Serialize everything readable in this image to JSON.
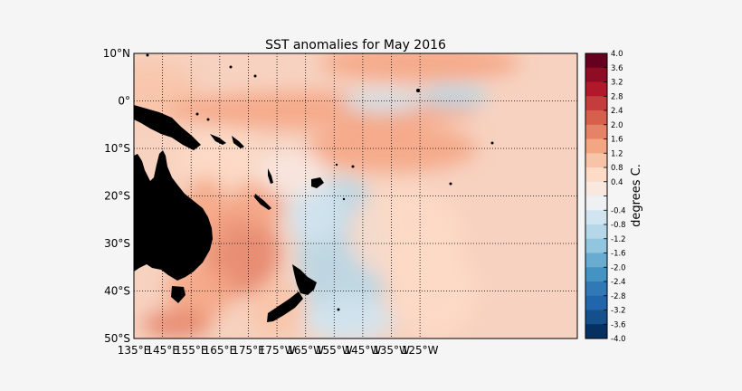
{
  "figure": {
    "title": "SST anomalies for May 2016"
  },
  "map": {
    "lon_range": [
      135,
      290
    ],
    "lat_range": [
      -50,
      10
    ],
    "grid": true,
    "grid_style": "dotted",
    "land_color": "#000000",
    "lat_ticks": [
      {
        "lat": 10,
        "label": "10°N"
      },
      {
        "lat": 0,
        "label": "0°"
      },
      {
        "lat": -10,
        "label": "10°S"
      },
      {
        "lat": -20,
        "label": "20°S"
      },
      {
        "lat": -30,
        "label": "30°S"
      },
      {
        "lat": -40,
        "label": "40°S"
      },
      {
        "lat": -50,
        "label": "50°S"
      }
    ],
    "lon_ticks": [
      {
        "lon": 135,
        "label": "135°E"
      },
      {
        "lon": 145,
        "label": "145°E"
      },
      {
        "lon": 155,
        "label": "155°E"
      },
      {
        "lon": 165,
        "label": "165°E"
      },
      {
        "lon": 175,
        "label": "175°E"
      },
      {
        "lon": 185,
        "label": "175°W"
      },
      {
        "lon": 195,
        "label": "165°W"
      },
      {
        "lon": 205,
        "label": "155°W"
      },
      {
        "lon": 215,
        "label": "145°W"
      },
      {
        "lon": 225,
        "label": "135°W"
      },
      {
        "lon": 235,
        "label": "125°W"
      }
    ]
  },
  "colorbar": {
    "label": "degrees C.",
    "ticks": [
      "4.0",
      "3.6",
      "3.2",
      "2.8",
      "2.4",
      "2.0",
      "1.6",
      "1.2",
      "0.8",
      "0.4",
      "",
      "-0.4",
      "-0.8",
      "-1.2",
      "-1.6",
      "-2.0",
      "-2.4",
      "-2.8",
      "-3.2",
      "-3.6",
      "-4.0"
    ],
    "colors": [
      "#67001f",
      "#8e0d25",
      "#b2182b",
      "#c43c3c",
      "#d6604d",
      "#e58368",
      "#f4a582",
      "#f8c4a8",
      "#fddbc7",
      "#f8e8e0",
      "#eef0f2",
      "#d1e5f0",
      "#b5d7e8",
      "#92c5de",
      "#6aacd0",
      "#4393c3",
      "#3078b6",
      "#2166ac",
      "#15508d",
      "#053061"
    ]
  },
  "anomaly_regions": [
    {
      "lon": 140,
      "lat": 2,
      "rx": 18,
      "ry": 6,
      "value": 1.0
    },
    {
      "lon": 200,
      "lat": -2,
      "rx": 55,
      "ry": 4,
      "value": 1.4
    },
    {
      "lon": 235,
      "lat": 8,
      "rx": 35,
      "ry": 4,
      "value": 1.2
    },
    {
      "lon": 222,
      "lat": 0,
      "rx": 14,
      "ry": 2.5,
      "value": -0.8
    },
    {
      "lon": 247,
      "lat": 1,
      "rx": 12,
      "ry": 2.5,
      "value": -0.9
    },
    {
      "lon": 225,
      "lat": -10,
      "rx": 30,
      "ry": 5,
      "value": 1.2
    },
    {
      "lon": 165,
      "lat": -12,
      "rx": 15,
      "ry": 6,
      "value": 0.8
    },
    {
      "lon": 208,
      "lat": -32,
      "rx": 16,
      "ry": 16,
      "value": -1.0
    },
    {
      "lon": 198,
      "lat": -23,
      "rx": 10,
      "ry": 7,
      "value": -0.8
    },
    {
      "lon": 210,
      "lat": -46,
      "rx": 16,
      "ry": 5,
      "value": -0.8
    },
    {
      "lon": 230,
      "lat": -28,
      "rx": 20,
      "ry": 10,
      "value": 0.6
    },
    {
      "lon": 240,
      "lat": -40,
      "rx": 15,
      "ry": 10,
      "value": 0.5
    },
    {
      "lon": 172,
      "lat": -32,
      "rx": 14,
      "ry": 9,
      "value": 1.8
    },
    {
      "lon": 178,
      "lat": -22,
      "rx": 10,
      "ry": 5,
      "value": 1.4
    },
    {
      "lon": 158,
      "lat": -40,
      "rx": 12,
      "ry": 6,
      "value": 1.4
    },
    {
      "lon": 150,
      "lat": -47,
      "rx": 12,
      "ry": 3,
      "value": 1.8
    },
    {
      "lon": 160,
      "lat": -24,
      "rx": 8,
      "ry": 8,
      "value": 1.2
    },
    {
      "lon": 185,
      "lat": -44,
      "rx": 10,
      "ry": 6,
      "value": 1.0
    },
    {
      "lon": 190,
      "lat": -15,
      "rx": 12,
      "ry": 5,
      "value": 0.4
    }
  ]
}
